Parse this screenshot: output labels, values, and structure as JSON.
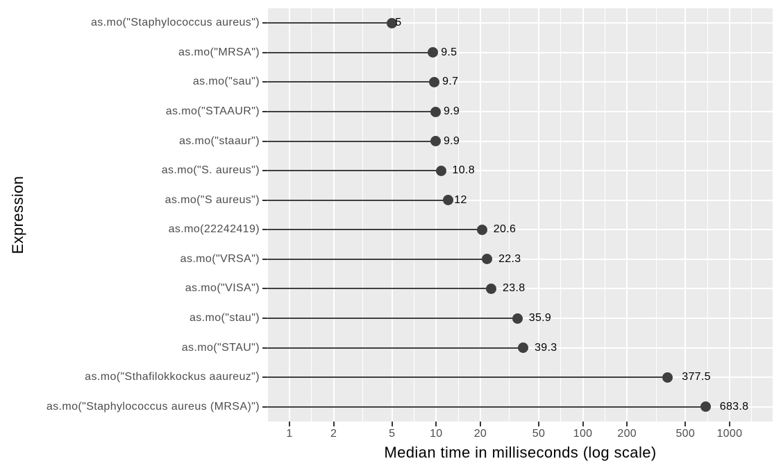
{
  "chart_data": {
    "type": "lollipop",
    "orientation": "horizontal",
    "title": "",
    "xlabel": "Median time in milliseconds (log scale)",
    "ylabel": "Expression",
    "x_scale": "log10",
    "xlim": [
      0.713,
      1968
    ],
    "x_major_ticks": [
      1,
      2,
      5,
      10,
      20,
      50,
      100,
      200,
      500,
      1000
    ],
    "x_major_tick_labels": [
      "1",
      "2",
      "5",
      "10",
      "20",
      "50",
      "100",
      "200",
      "500",
      "1000"
    ],
    "x_minor_gridlines": [
      1.414,
      3.162,
      7.071,
      14.142,
      31.623,
      70.711,
      141.421,
      316.228,
      707.107,
      1414.214
    ],
    "grid": true,
    "legend_position": "none",
    "categories": [
      "as.mo(\"Staphylococcus aureus\")",
      "as.mo(\"MRSA\")",
      "as.mo(\"sau\")",
      "as.mo(\"STAAUR\")",
      "as.mo(\"staaur\")",
      "as.mo(\"S. aureus\")",
      "as.mo(\"S aureus\")",
      "as.mo(22242419)",
      "as.mo(\"VRSA\")",
      "as.mo(\"VISA\")",
      "as.mo(\"stau\")",
      "as.mo(\"STAU\")",
      "as.mo(\"Sthafilokkockus aaureuz\")",
      "as.mo(\"Staphylococcus aureus (MRSA)\")"
    ],
    "series": [
      {
        "name": "median_time_ms",
        "values": [
          5,
          9.5,
          9.7,
          9.9,
          9.9,
          10.8,
          12,
          20.6,
          22.3,
          23.8,
          35.9,
          39.3,
          377.5,
          683.8
        ]
      }
    ],
    "point_labels": [
      "5",
      "9.5",
      "9.7",
      "9.9",
      "9.9",
      "10.8",
      "12",
      "20.6",
      "22.3",
      "23.8",
      "35.9",
      "39.3",
      "377.5",
      "683.8"
    ],
    "colors": {
      "panel_bg": "#ebebeb",
      "gridline": "#ffffff",
      "point": "#3f3f3f",
      "stem": "#3f3f3f",
      "tick_mark": "#333333",
      "axis_text": "#4d4d4d",
      "value_text": "#000000",
      "title_text": "#000000",
      "page_bg": "#ffffff"
    }
  }
}
